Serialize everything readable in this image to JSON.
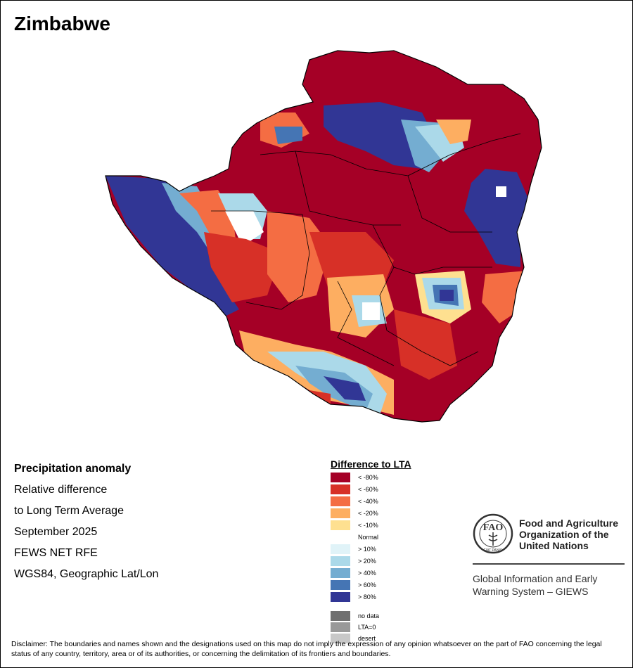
{
  "title": "Zimbabwe",
  "info": {
    "line1": "Precipitation anomaly",
    "line2": "Relative difference",
    "line3": "to Long Term Average",
    "line4": "September 2025",
    "line5": "FEWS NET RFE",
    "line6": "WGS84, Geographic Lat/Lon"
  },
  "legend": {
    "title": "Difference to LTA",
    "items": [
      {
        "label": "< -80%",
        "color": "#a50026"
      },
      {
        "label": "< -60%",
        "color": "#d73027"
      },
      {
        "label": "< -40%",
        "color": "#f46d43"
      },
      {
        "label": "< -20%",
        "color": "#fdae61"
      },
      {
        "label": "< -10%",
        "color": "#fee090"
      },
      {
        "label": "Normal",
        "color": "#ffffff"
      },
      {
        "label": "> 10%",
        "color": "#e0f3f8"
      },
      {
        "label": "> 20%",
        "color": "#abd9e9"
      },
      {
        "label": "> 40%",
        "color": "#74add1"
      },
      {
        "label": "> 60%",
        "color": "#4575b4"
      },
      {
        "label": "> 80%",
        "color": "#313695"
      }
    ],
    "extra": [
      {
        "label": "no data",
        "color": "#707070"
      },
      {
        "label": "LTA=0",
        "color": "#999999"
      },
      {
        "label": "desert",
        "color": "#c8c8c8"
      }
    ]
  },
  "org": {
    "acronym": "FAO",
    "seal_text": "FIAT PANIS",
    "name_line1": "Food and Agriculture",
    "name_line2": "Organization of the",
    "name_line3": "United Nations",
    "system_line1": "Global Information and Early",
    "system_line2": "Warning System – GIEWS"
  },
  "disclaimer": "Disclaimer: The boundaries and names shown and the designations used on this map do not imply the expression of any opinion whatsoever on the part of FAO concerning the legal status of any country, territory, area or of its authorities, or concerning the delimitation of its frontiers and boundaries."
}
